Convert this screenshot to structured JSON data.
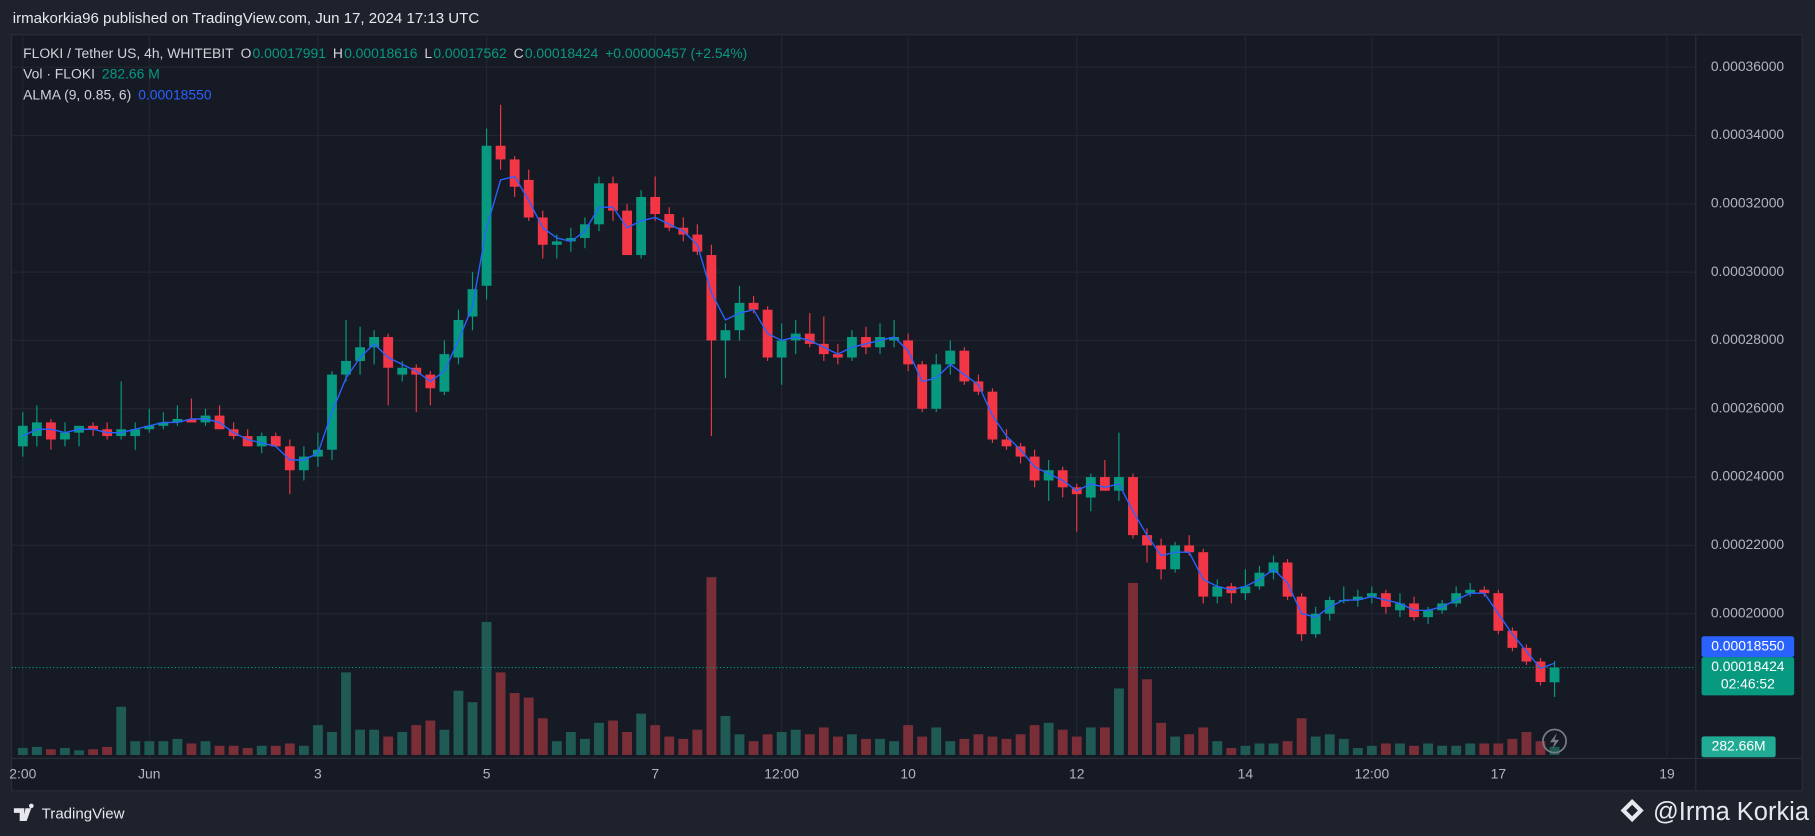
{
  "page": {
    "published": "irmakorkia96 published on TradingView.com, Jun 17, 2024 17:13 UTC",
    "brand": "TradingView",
    "watermark": "@Irma Korkia"
  },
  "chart_data": {
    "type": "candlestick",
    "symbol": "FLOKI / Tether US, 4h, WHITEBIT",
    "ohlc_labels": [
      "O",
      "H",
      "L",
      "C"
    ],
    "change": "+0.00000457 (+2.54%)",
    "volume_name": "Vol · FLOKI",
    "volume_label": "282.66 M",
    "volume_badge": "282.66M",
    "alma_name": "ALMA (9, 0.85, 6)",
    "alma_label": "0.00018550",
    "countdown": "02:46:52",
    "x": [
      -9,
      -8,
      -7,
      -6,
      -5,
      -4,
      -3,
      -2,
      -1,
      0,
      1,
      2,
      3,
      4,
      5,
      6,
      7,
      8,
      9,
      10,
      11,
      12,
      13,
      14,
      15,
      16,
      17,
      18,
      19,
      20,
      21,
      22,
      23,
      24,
      25,
      26,
      27,
      28,
      29,
      30,
      31,
      32,
      33,
      34,
      35,
      36,
      37,
      38,
      39,
      40,
      41,
      42,
      43,
      44,
      45,
      46,
      47,
      48,
      49,
      50,
      51,
      52,
      53,
      54,
      55,
      56,
      57,
      58,
      59,
      60,
      61,
      62,
      63,
      64,
      65,
      66,
      67,
      68,
      69,
      70,
      71,
      72,
      73,
      74,
      75,
      76,
      77,
      78,
      79,
      80,
      81,
      82,
      83,
      84,
      85,
      86,
      87,
      88,
      89,
      90,
      91,
      92,
      93,
      94,
      95,
      96,
      97,
      98,
      99,
      100
    ],
    "open": [
      0.000249,
      0.000252,
      0.000256,
      0.000251,
      0.000253,
      0.000255,
      0.000254,
      0.000252,
      0.000252,
      0.000254,
      0.000255,
      0.000256,
      0.000257,
      0.000256,
      0.000258,
      0.000254,
      0.000252,
      0.000249,
      0.000252,
      0.000249,
      0.000242,
      0.000246,
      0.000248,
      0.00027,
      0.000274,
      0.000278,
      0.000281,
      0.00027,
      0.000272,
      0.00027,
      0.000265,
      0.000275,
      0.000287,
      0.000296,
      0.000337,
      0.000333,
      0.000327,
      0.000316,
      0.000308,
      0.000309,
      0.00031,
      0.000314,
      0.000326,
      0.000318,
      0.000305,
      0.000322,
      0.000317,
      0.000313,
      0.000311,
      0.000305,
      0.00028,
      0.000283,
      0.000291,
      0.000289,
      0.000275,
      0.00028,
      0.000282,
      0.000279,
      0.000276,
      0.000275,
      0.000281,
      0.000278,
      0.00028,
      0.00028,
      0.000273,
      0.00026,
      0.000273,
      0.000277,
      0.000268,
      0.000265,
      0.000251,
      0.000249,
      0.000246,
      0.000239,
      0.000242,
      0.000237,
      0.000234,
      0.00024,
      0.000236,
      0.00024,
      0.000223,
      0.00022,
      0.000213,
      0.00022,
      0.000218,
      0.000205,
      0.000208,
      0.000206,
      0.000208,
      0.000212,
      0.000215,
      0.000205,
      0.000194,
      0.0002,
      0.000204,
      0.000204,
      0.000205,
      0.000206,
      0.000201,
      0.000203,
      0.000199,
      0.000201,
      0.000203,
      0.000206,
      0.000207,
      0.000206,
      0.000195,
      0.00019,
      0.000186,
      0.00017991
    ],
    "high": [
      0.000259,
      0.000261,
      0.000257,
      0.000256,
      0.000255,
      0.000256,
      0.000256,
      0.000268,
      0.000256,
      0.00026,
      0.000259,
      0.000261,
      0.000263,
      0.00026,
      0.000261,
      0.000256,
      0.000254,
      0.000253,
      0.000253,
      0.000251,
      0.000249,
      0.000253,
      0.000271,
      0.000286,
      0.000284,
      0.000283,
      0.000282,
      0.000274,
      0.000273,
      0.000271,
      0.00028,
      0.000289,
      0.0003,
      0.000342,
      0.000349,
      0.000334,
      0.00033,
      0.000318,
      0.000311,
      0.000313,
      0.000316,
      0.000328,
      0.000328,
      0.00032,
      0.000324,
      0.000328,
      0.000319,
      0.000316,
      0.000314,
      0.000308,
      0.000285,
      0.000296,
      0.000293,
      0.00029,
      0.000285,
      0.000286,
      0.000288,
      0.000287,
      0.000279,
      0.000283,
      0.000284,
      0.000285,
      0.000286,
      0.000282,
      0.000274,
      0.000276,
      0.00028,
      0.000278,
      0.00027,
      0.000266,
      0.000254,
      0.00025,
      0.000248,
      0.000245,
      0.000243,
      0.000238,
      0.000241,
      0.000245,
      0.000253,
      0.000241,
      0.000225,
      0.000222,
      0.000221,
      0.000223,
      0.000219,
      0.00021,
      0.000209,
      0.000213,
      0.000214,
      0.000217,
      0.000216,
      0.000206,
      0.000202,
      0.000205,
      0.000208,
      0.000207,
      0.000208,
      0.000207,
      0.000206,
      0.000205,
      0.000202,
      0.000204,
      0.000208,
      0.000209,
      0.000208,
      0.000207,
      0.000196,
      0.000191,
      0.000187,
      0.00018616
    ],
    "low": [
      0.000246,
      0.000249,
      0.000248,
      0.000249,
      0.000249,
      0.000252,
      0.000251,
      0.000251,
      0.000248,
      0.000253,
      0.000254,
      0.000255,
      0.000256,
      0.000255,
      0.000254,
      0.000251,
      0.000249,
      0.000247,
      0.000249,
      0.000235,
      0.000239,
      0.000243,
      0.000245,
      0.000268,
      0.00027,
      0.000273,
      0.000261,
      0.000268,
      0.000259,
      0.000261,
      0.000264,
      0.000273,
      0.000283,
      0.000292,
      0.00033,
      0.000322,
      0.000315,
      0.000304,
      0.000304,
      0.000306,
      0.000307,
      0.000312,
      0.000315,
      0.000305,
      0.000304,
      0.000315,
      0.000312,
      0.000309,
      0.000305,
      0.000252,
      0.000269,
      0.00028,
      0.000288,
      0.000274,
      0.000267,
      0.000276,
      0.000278,
      0.000274,
      0.000273,
      0.000274,
      0.000276,
      0.000276,
      0.000278,
      0.000271,
      0.000259,
      0.000259,
      0.00027,
      0.000267,
      0.000264,
      0.00025,
      0.000248,
      0.000244,
      0.000237,
      0.000233,
      0.000234,
      0.000224,
      0.00023,
      0.000236,
      0.000233,
      0.000222,
      0.000215,
      0.00021,
      0.000212,
      0.000217,
      0.000203,
      0.000203,
      0.000203,
      0.000204,
      0.000207,
      0.00021,
      0.000204,
      0.000192,
      0.000193,
      0.000198,
      0.000203,
      0.000202,
      0.000203,
      0.0002,
      0.000199,
      0.000198,
      0.000197,
      0.0002,
      0.000202,
      0.000205,
      0.000205,
      0.000194,
      0.000189,
      0.000185,
      0.000179,
      0.00017562
    ],
    "close": [
      0.000255,
      0.000256,
      0.000251,
      0.000253,
      0.000255,
      0.000254,
      0.000252,
      0.000254,
      0.000254,
      0.000255,
      0.000256,
      0.000257,
      0.000256,
      0.000258,
      0.000254,
      0.000252,
      0.000249,
      0.000252,
      0.000249,
      0.000242,
      0.000246,
      0.000248,
      0.00027,
      0.000274,
      0.000278,
      0.000281,
      0.000272,
      0.000272,
      0.00027,
      0.000266,
      0.000276,
      0.000286,
      0.000295,
      0.000337,
      0.000333,
      0.000325,
      0.000316,
      0.000308,
      0.000309,
      0.00031,
      0.000314,
      0.000326,
      0.000318,
      0.000305,
      0.000322,
      0.000317,
      0.000313,
      0.000311,
      0.000306,
      0.00028,
      0.000283,
      0.000291,
      0.000289,
      0.000275,
      0.00028,
      0.000282,
      0.000279,
      0.000276,
      0.000275,
      0.000281,
      0.000278,
      0.000281,
      0.000281,
      0.000273,
      0.00026,
      0.000273,
      0.000277,
      0.000268,
      0.000265,
      0.000251,
      0.000249,
      0.000246,
      0.000239,
      0.000242,
      0.000237,
      0.000235,
      0.00024,
      0.000236,
      0.00024,
      0.000223,
      0.00022,
      0.000213,
      0.00022,
      0.000218,
      0.000205,
      0.000208,
      0.000206,
      0.000208,
      0.000212,
      0.000215,
      0.000205,
      0.000194,
      0.0002,
      0.000204,
      0.000204,
      0.000205,
      0.000206,
      0.000202,
      0.000203,
      0.000199,
      0.000201,
      0.000203,
      0.000206,
      0.000207,
      0.000206,
      0.000195,
      0.00019,
      0.000186,
      0.00018,
      0.00018424
    ],
    "volume": [
      240,
      280,
      200,
      240,
      160,
      200,
      280,
      1680,
      480,
      480,
      480,
      560,
      400,
      480,
      320,
      320,
      240,
      320,
      320,
      400,
      320,
      1040,
      800,
      2880,
      880,
      880,
      640,
      800,
      1040,
      1200,
      880,
      2240,
      1840,
      4640,
      2880,
      2160,
      2000,
      1280,
      480,
      800,
      560,
      1120,
      1200,
      800,
      1440,
      1040,
      640,
      560,
      880,
      6200,
      1360,
      720,
      480,
      720,
      800,
      880,
      720,
      960,
      640,
      720,
      560,
      560,
      480,
      1040,
      640,
      960,
      480,
      560,
      720,
      640,
      560,
      720,
      1040,
      1120,
      880,
      640,
      960,
      960,
      2320,
      6000,
      2640,
      1120,
      640,
      720,
      960,
      480,
      240,
      320,
      400,
      400,
      480,
      1280,
      640,
      720,
      560,
      240,
      320,
      400,
      400,
      320,
      400,
      320,
      320,
      400,
      400,
      400,
      560,
      800,
      480,
      282.66
    ],
    "alma": [
      0.000252,
      0.000254,
      0.000254,
      0.000253,
      0.000254,
      0.000254,
      0.000253,
      0.000253,
      0.000254,
      0.000255,
      0.000256,
      0.000256,
      0.000257,
      0.000257,
      0.000256,
      0.000253,
      0.000251,
      0.00025,
      0.000249,
      0.000245,
      0.000245,
      0.000247,
      0.000259,
      0.000269,
      0.000275,
      0.000279,
      0.000275,
      0.000273,
      0.000271,
      0.000268,
      0.000271,
      0.00028,
      0.00029,
      0.000313,
      0.000327,
      0.000328,
      0.000321,
      0.000313,
      0.00031,
      0.000309,
      0.000312,
      0.000319,
      0.000319,
      0.000313,
      0.000315,
      0.000316,
      0.000314,
      0.000312,
      0.000308,
      0.000294,
      0.000286,
      0.000288,
      0.000289,
      0.000282,
      0.00028,
      0.000281,
      0.00028,
      0.000278,
      0.000276,
      0.000278,
      0.000279,
      0.00028,
      0.000281,
      0.000277,
      0.000268,
      0.000269,
      0.000273,
      0.00027,
      0.000267,
      0.000258,
      0.000252,
      0.000248,
      0.000243,
      0.000241,
      0.000239,
      0.000236,
      0.000238,
      0.000237,
      0.000238,
      0.00023,
      0.000223,
      0.000217,
      0.000218,
      0.000218,
      0.00021,
      0.000208,
      0.000207,
      0.000208,
      0.00021,
      0.000213,
      0.000209,
      0.0002,
      0.000199,
      0.000202,
      0.000204,
      0.000204,
      0.000205,
      0.000204,
      0.000203,
      0.000201,
      0.000201,
      0.000202,
      0.000204,
      0.000206,
      0.000206,
      0.0002,
      0.000194,
      0.000189,
      0.000184,
      0.0001855
    ],
    "colors": {
      "up": "#089981",
      "down": "#f23645",
      "alma": "#2962ff",
      "volume_up": "#1f5a55",
      "volume_down": "#7a2e37"
    },
    "xlim": [
      -9.8,
      110.05
    ],
    "xticks": [
      {
        "value": -9,
        "label": "2:00"
      },
      {
        "value": 0,
        "label": "Jun"
      },
      {
        "value": 12,
        "label": "3"
      },
      {
        "value": 24,
        "label": "5"
      },
      {
        "value": 36,
        "label": "7"
      },
      {
        "value": 45,
        "label": "12:00"
      },
      {
        "value": 54,
        "label": "10"
      },
      {
        "value": 66,
        "label": "12"
      },
      {
        "value": 78,
        "label": "14"
      },
      {
        "value": 87,
        "label": "12:00"
      },
      {
        "value": 96,
        "label": "17"
      },
      {
        "value": 108,
        "label": "19"
      }
    ],
    "ylim": [
      0.00015763,
      0.0003695
    ],
    "yticks": [
      {
        "value": 0.0002,
        "label": "0.00020000"
      },
      {
        "value": 0.00022,
        "label": "0.00022000"
      },
      {
        "value": 0.00024,
        "label": "0.00024000"
      },
      {
        "value": 0.00026,
        "label": "0.00026000"
      },
      {
        "value": 0.00028,
        "label": "0.00028000"
      },
      {
        "value": 0.0003,
        "label": "0.00030000"
      },
      {
        "value": 0.00032,
        "label": "0.00032000"
      },
      {
        "value": 0.00034,
        "label": "0.00034000"
      },
      {
        "value": 0.00036,
        "label": "0.00036000"
      }
    ],
    "vlim": [
      0,
      25120
    ],
    "grid": true
  }
}
